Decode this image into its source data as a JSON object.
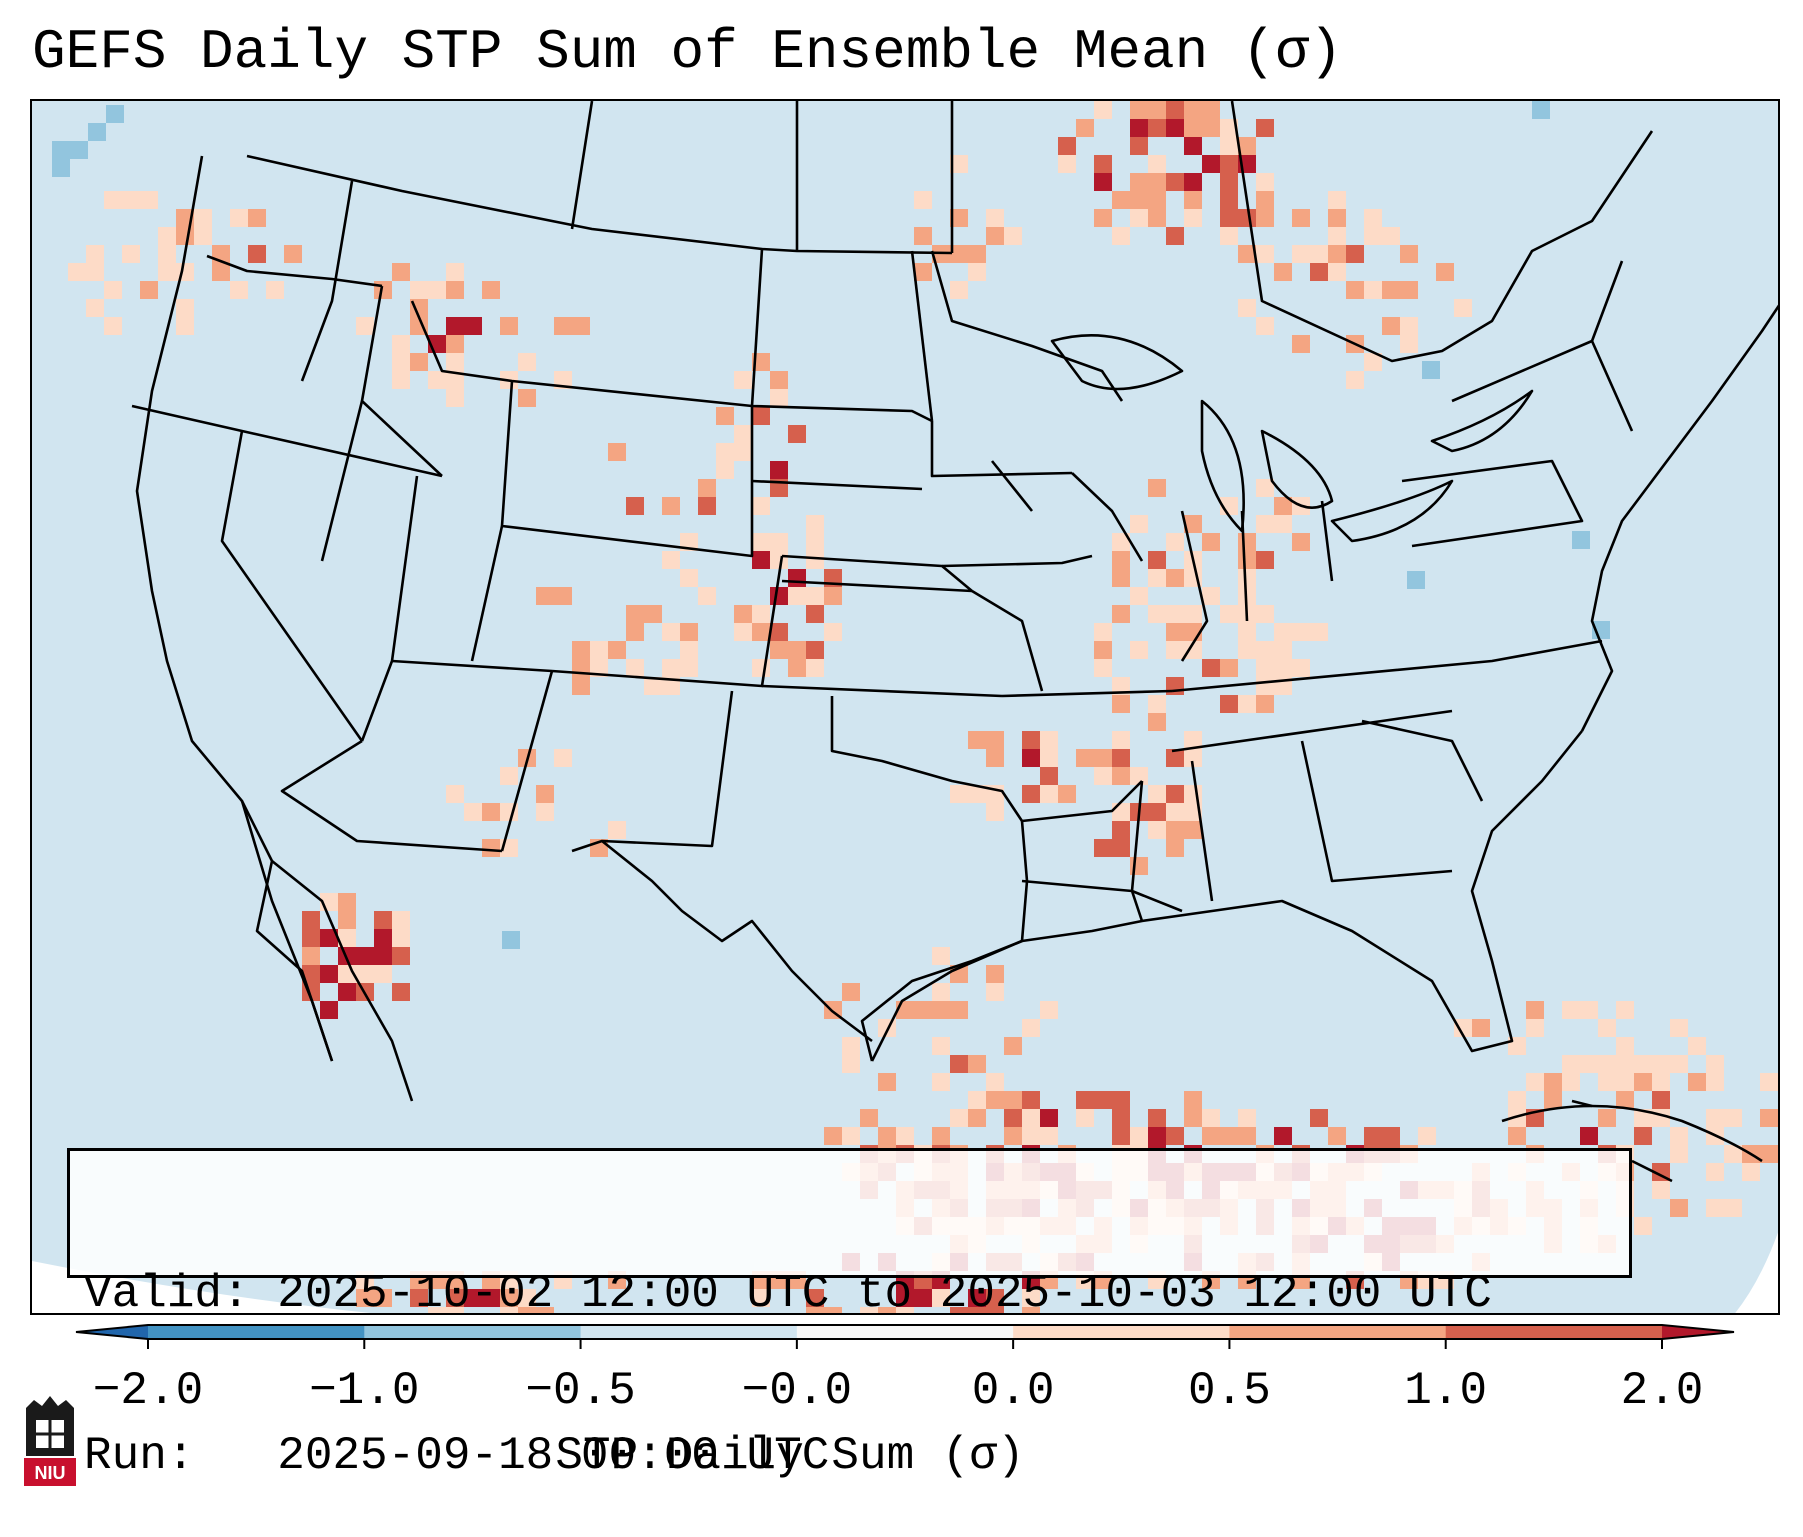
{
  "title": "GEFS Daily STP Sum of Ensemble Mean (σ)",
  "info": {
    "valid_line": "Valid: 2025-10-02 12:00 UTC to 2025-10-03 12:00 UTC",
    "run_line": "Run:   2025-09-18 00:00 UTC"
  },
  "colorbar": {
    "label": "STP Daily Sum (σ)",
    "ticks": [
      "−2.0",
      "−1.0",
      "−0.5",
      "−0.0",
      "0.0",
      "0.5",
      "1.0",
      "2.0"
    ],
    "colors": [
      "#2166ac",
      "#4393c3",
      "#92c5de",
      "#d1e5f0",
      "#f7f7f7",
      "#fddbc7",
      "#f4a582",
      "#d6604d",
      "#b2182b"
    ]
  },
  "logo": {
    "text": "NIU"
  },
  "map": {
    "region": "CONUS",
    "ocean_color": "#d1e5f0"
  }
}
